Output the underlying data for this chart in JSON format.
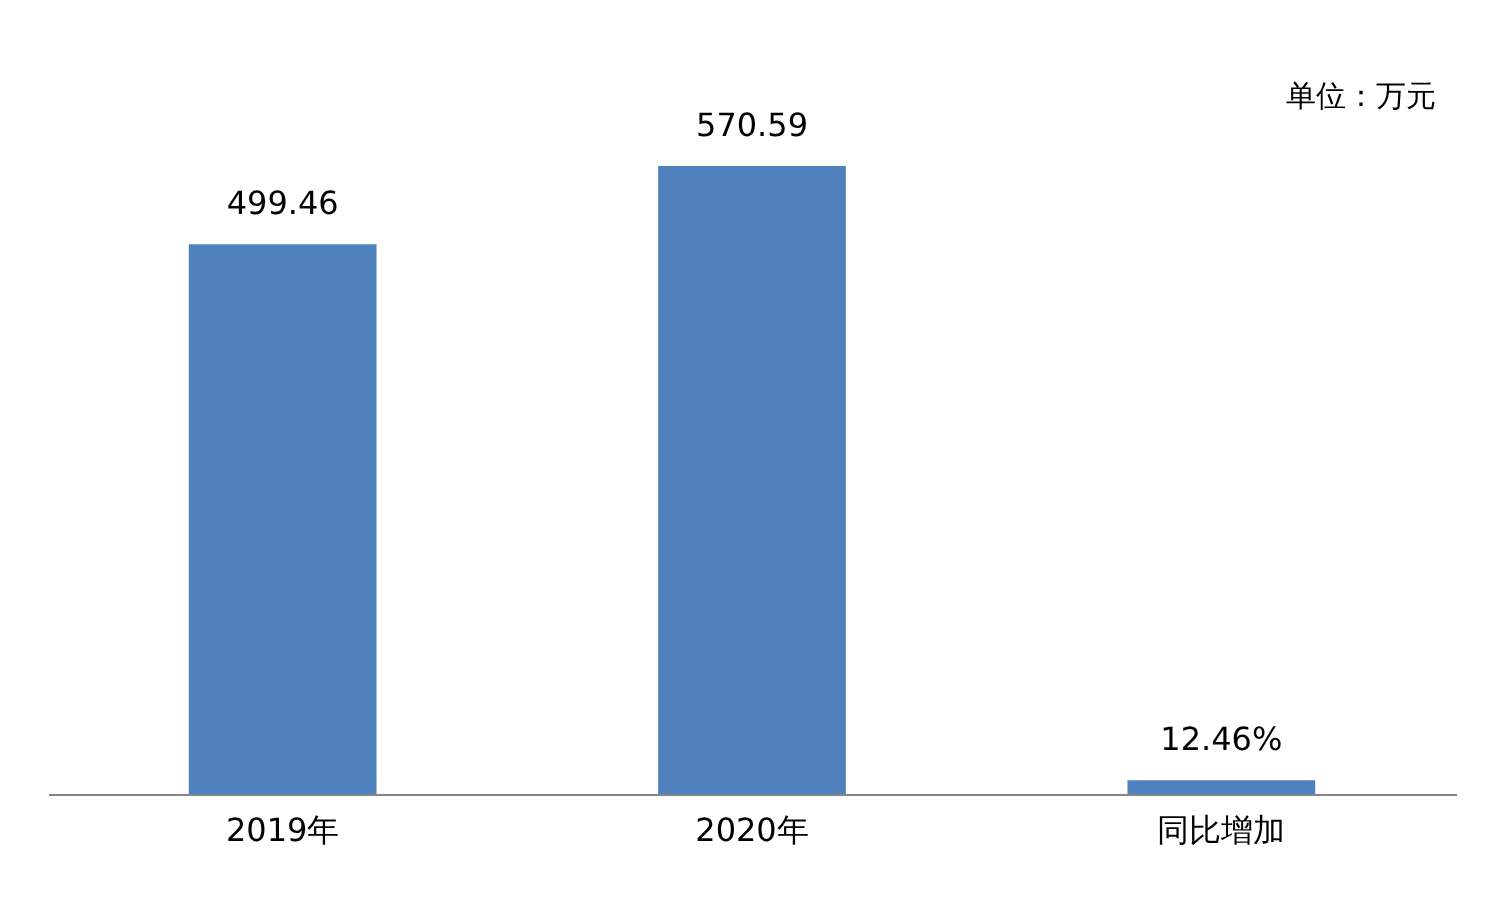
{
  "chart_data": {
    "type": "bar",
    "categories": [
      "2019年",
      "2020年",
      "同比增加"
    ],
    "values": [
      499.46,
      570.59,
      12.46
    ],
    "value_labels": [
      "499.46",
      "570.59",
      "12.46%"
    ],
    "color": "#4f81bd",
    "annotations": [
      "单位：万元"
    ]
  }
}
